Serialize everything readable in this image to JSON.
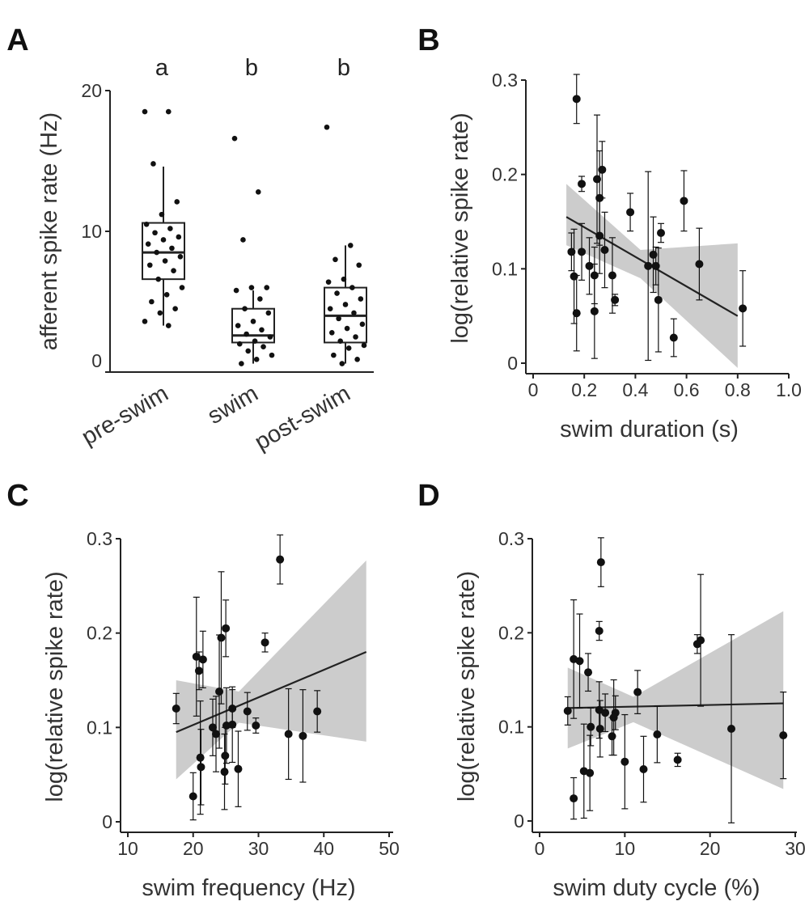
{
  "chart_data": [
    {
      "panel": "A",
      "type": "box",
      "ylabel": "afferent spike rate (Hz)",
      "ylim": [
        0,
        20
      ],
      "yticks": [
        0,
        10,
        20
      ],
      "categories": [
        "pre-swim",
        "swim",
        "post-swim"
      ],
      "significance": [
        "a",
        "b",
        "b"
      ],
      "boxes": [
        {
          "q1": 6.6,
          "median": 8.5,
          "q3": 10.6,
          "whisker_low": 3.3,
          "whisker_high": 14.6
        },
        {
          "q1": 2.1,
          "median": 2.6,
          "q3": 4.5,
          "whisker_low": 0.6,
          "whisker_high": 5.8
        },
        {
          "q1": 2.1,
          "median": 4.0,
          "q3": 6.0,
          "whisker_low": 0.6,
          "whisker_high": 9.0
        }
      ],
      "points": [
        [
          18.5,
          18.5,
          14.8,
          12.1,
          11.2,
          10.5,
          10.2,
          9.9,
          9.6,
          9.4,
          9.1,
          8.8,
          8.5,
          8.2,
          7.9,
          7.6,
          7.2,
          6.6,
          6.0,
          5.5,
          5.0,
          4.5,
          4.2,
          3.6,
          3.3
        ],
        [
          16.6,
          12.8,
          9.4,
          6.0,
          6.0,
          5.8,
          5.2,
          4.5,
          4.2,
          3.6,
          3.3,
          3.0,
          2.7,
          2.5,
          2.2,
          2.0,
          1.8,
          1.5,
          1.2,
          0.9,
          0.6
        ],
        [
          17.4,
          9.0,
          8.0,
          7.6,
          6.6,
          6.4,
          6.0,
          5.6,
          5.2,
          4.8,
          4.5,
          4.2,
          3.8,
          3.4,
          3.1,
          2.8,
          2.5,
          2.2,
          1.9,
          1.7,
          1.2,
          0.9,
          0.6
        ]
      ]
    },
    {
      "panel": "B",
      "type": "scatter",
      "xlabel": "swim duration (s)",
      "ylabel": "log(relative spike rate)",
      "xlim": [
        0,
        1.0
      ],
      "ylim": [
        0,
        0.3
      ],
      "xticks": [
        0,
        0.2,
        0.4,
        0.6,
        0.8,
        1.0
      ],
      "xticklabels": [
        "0",
        "0.2",
        "0.4",
        "0.6",
        "0.8",
        "1.0"
      ],
      "yticks": [
        0,
        0.1,
        0.2,
        0.3
      ],
      "yticklabels": [
        "0",
        "0.1",
        "0.2",
        "0.3"
      ],
      "points": [
        {
          "x": 0.17,
          "y": 0.28,
          "err": 0.026
        },
        {
          "x": 0.19,
          "y": 0.19,
          "err": 0.008
        },
        {
          "x": 0.27,
          "y": 0.205,
          "err": 0.03
        },
        {
          "x": 0.25,
          "y": 0.195,
          "err": 0.068
        },
        {
          "x": 0.26,
          "y": 0.175,
          "err": 0.05
        },
        {
          "x": 0.38,
          "y": 0.16,
          "err": 0.02
        },
        {
          "x": 0.59,
          "y": 0.172,
          "err": 0.032
        },
        {
          "x": 0.22,
          "y": 0.103,
          "err": 0.03
        },
        {
          "x": 0.26,
          "y": 0.135,
          "err": 0.04
        },
        {
          "x": 0.28,
          "y": 0.12,
          "err": 0.04
        },
        {
          "x": 0.15,
          "y": 0.118,
          "err": 0.02
        },
        {
          "x": 0.19,
          "y": 0.118,
          "err": 0.03
        },
        {
          "x": 0.16,
          "y": 0.092,
          "err": 0.05
        },
        {
          "x": 0.17,
          "y": 0.053,
          "err": 0.04
        },
        {
          "x": 0.24,
          "y": 0.093,
          "err": 0.03
        },
        {
          "x": 0.24,
          "y": 0.055,
          "err": 0.05
        },
        {
          "x": 0.31,
          "y": 0.093,
          "err": 0.04
        },
        {
          "x": 0.32,
          "y": 0.067,
          "err": 0.006
        },
        {
          "x": 0.45,
          "y": 0.103,
          "err": 0.1
        },
        {
          "x": 0.47,
          "y": 0.115,
          "err": 0.04
        },
        {
          "x": 0.48,
          "y": 0.103,
          "err": 0.02
        },
        {
          "x": 0.49,
          "y": 0.067,
          "err": 0.055
        },
        {
          "x": 0.5,
          "y": 0.138,
          "err": 0.01
        },
        {
          "x": 0.55,
          "y": 0.027,
          "err": 0.02
        },
        {
          "x": 0.65,
          "y": 0.105,
          "err": 0.038
        },
        {
          "x": 0.82,
          "y": 0.058,
          "err": 0.04
        }
      ],
      "fit": {
        "x": [
          0.13,
          0.8
        ],
        "y": [
          0.155,
          0.05
        ]
      },
      "band": {
        "x": [
          0.13,
          0.42,
          0.8
        ],
        "low": [
          0.125,
          0.09,
          -0.005
        ],
        "high": [
          0.19,
          0.12,
          0.127
        ]
      }
    },
    {
      "panel": "C",
      "type": "scatter",
      "xlabel": "swim frequency (Hz)",
      "ylabel": "log(relative spike rate)",
      "xlim": [
        10,
        50
      ],
      "ylim": [
        0,
        0.3
      ],
      "xticks": [
        10,
        20,
        30,
        40,
        50
      ],
      "xticklabels": [
        "10",
        "20",
        "30",
        "40",
        "50"
      ],
      "yticks": [
        0,
        0.1,
        0.2,
        0.3
      ],
      "yticklabels": [
        "0",
        "0.1",
        "0.2",
        "0.3"
      ],
      "points": [
        {
          "x": 33.3,
          "y": 0.278,
          "err": 0.026
        },
        {
          "x": 31.0,
          "y": 0.19,
          "err": 0.01
        },
        {
          "x": 25.0,
          "y": 0.205,
          "err": 0.03
        },
        {
          "x": 24.3,
          "y": 0.195,
          "err": 0.07
        },
        {
          "x": 20.5,
          "y": 0.175,
          "err": 0.063
        },
        {
          "x": 21.5,
          "y": 0.172,
          "err": 0.03
        },
        {
          "x": 20.9,
          "y": 0.16,
          "err": 0.02
        },
        {
          "x": 17.4,
          "y": 0.12,
          "err": 0.016
        },
        {
          "x": 24.0,
          "y": 0.138,
          "err": 0.06
        },
        {
          "x": 26.0,
          "y": 0.12,
          "err": 0.02
        },
        {
          "x": 28.3,
          "y": 0.117,
          "err": 0.02
        },
        {
          "x": 25.1,
          "y": 0.102,
          "err": 0.04
        },
        {
          "x": 26.0,
          "y": 0.103,
          "err": 0.04
        },
        {
          "x": 23.0,
          "y": 0.1,
          "err": 0.03
        },
        {
          "x": 29.6,
          "y": 0.102,
          "err": 0.008
        },
        {
          "x": 23.5,
          "y": 0.093,
          "err": 0.04
        },
        {
          "x": 34.6,
          "y": 0.093,
          "err": 0.048
        },
        {
          "x": 36.8,
          "y": 0.091,
          "err": 0.049
        },
        {
          "x": 39.0,
          "y": 0.117,
          "err": 0.022
        },
        {
          "x": 21.1,
          "y": 0.068,
          "err": 0.06
        },
        {
          "x": 21.2,
          "y": 0.058,
          "err": 0.04
        },
        {
          "x": 24.9,
          "y": 0.07,
          "err": 0.03
        },
        {
          "x": 24.8,
          "y": 0.053,
          "err": 0.04
        },
        {
          "x": 26.9,
          "y": 0.056,
          "err": 0.04
        },
        {
          "x": 20.0,
          "y": 0.027,
          "err": 0.025
        }
      ],
      "fit": {
        "x": [
          17.4,
          46.5
        ],
        "y": [
          0.095,
          0.18
        ]
      },
      "band": {
        "x": [
          17.4,
          27,
          46.5
        ],
        "low": [
          0.045,
          0.105,
          0.085
        ],
        "high": [
          0.15,
          0.138,
          0.277
        ]
      }
    },
    {
      "panel": "D",
      "type": "scatter",
      "xlabel": "swim duty cycle (%)",
      "ylabel": "log(relative spike rate)",
      "xlim": [
        0,
        30
      ],
      "ylim": [
        0,
        0.3
      ],
      "xticks": [
        0,
        10,
        20,
        30
      ],
      "xticklabels": [
        "0",
        "10",
        "20",
        "30"
      ],
      "yticks": [
        0,
        0.1,
        0.2,
        0.3
      ],
      "yticklabels": [
        "0",
        "0.1",
        "0.2",
        "0.3"
      ],
      "points": [
        {
          "x": 7.2,
          "y": 0.275,
          "err": 0.026
        },
        {
          "x": 7.0,
          "y": 0.202,
          "err": 0.01
        },
        {
          "x": 18.9,
          "y": 0.192,
          "err": 0.07
        },
        {
          "x": 18.5,
          "y": 0.188,
          "err": 0.01
        },
        {
          "x": 4.0,
          "y": 0.172,
          "err": 0.063
        },
        {
          "x": 4.7,
          "y": 0.17,
          "err": 0.05
        },
        {
          "x": 5.7,
          "y": 0.158,
          "err": 0.02
        },
        {
          "x": 3.3,
          "y": 0.117,
          "err": 0.015
        },
        {
          "x": 11.5,
          "y": 0.137,
          "err": 0.023
        },
        {
          "x": 7.0,
          "y": 0.118,
          "err": 0.03
        },
        {
          "x": 7.7,
          "y": 0.115,
          "err": 0.02
        },
        {
          "x": 8.9,
          "y": 0.115,
          "err": 0.018
        },
        {
          "x": 8.7,
          "y": 0.11,
          "err": 0.04
        },
        {
          "x": 8.5,
          "y": 0.09,
          "err": 0.02
        },
        {
          "x": 6.0,
          "y": 0.1,
          "err": 0.02
        },
        {
          "x": 7.1,
          "y": 0.098,
          "err": 0.03
        },
        {
          "x": 13.8,
          "y": 0.092,
          "err": 0.03
        },
        {
          "x": 16.2,
          "y": 0.065,
          "err": 0.007
        },
        {
          "x": 22.5,
          "y": 0.098,
          "err": 0.1
        },
        {
          "x": 28.6,
          "y": 0.091,
          "err": 0.046
        },
        {
          "x": 10.0,
          "y": 0.063,
          "err": 0.05
        },
        {
          "x": 12.2,
          "y": 0.055,
          "err": 0.035
        },
        {
          "x": 5.2,
          "y": 0.053,
          "err": 0.05
        },
        {
          "x": 5.9,
          "y": 0.051,
          "err": 0.04
        },
        {
          "x": 4.0,
          "y": 0.024,
          "err": 0.022
        }
      ],
      "fit": {
        "x": [
          3.3,
          28.6
        ],
        "y": [
          0.12,
          0.125
        ]
      },
      "band": {
        "x": [
          3.3,
          11,
          28.6
        ],
        "low": [
          0.077,
          0.105,
          0.034
        ],
        "high": [
          0.163,
          0.132,
          0.223
        ]
      }
    }
  ],
  "styles": {
    "marker": "#111111",
    "band": "#cccccc",
    "fit": "#222222",
    "axis": "#222222"
  }
}
